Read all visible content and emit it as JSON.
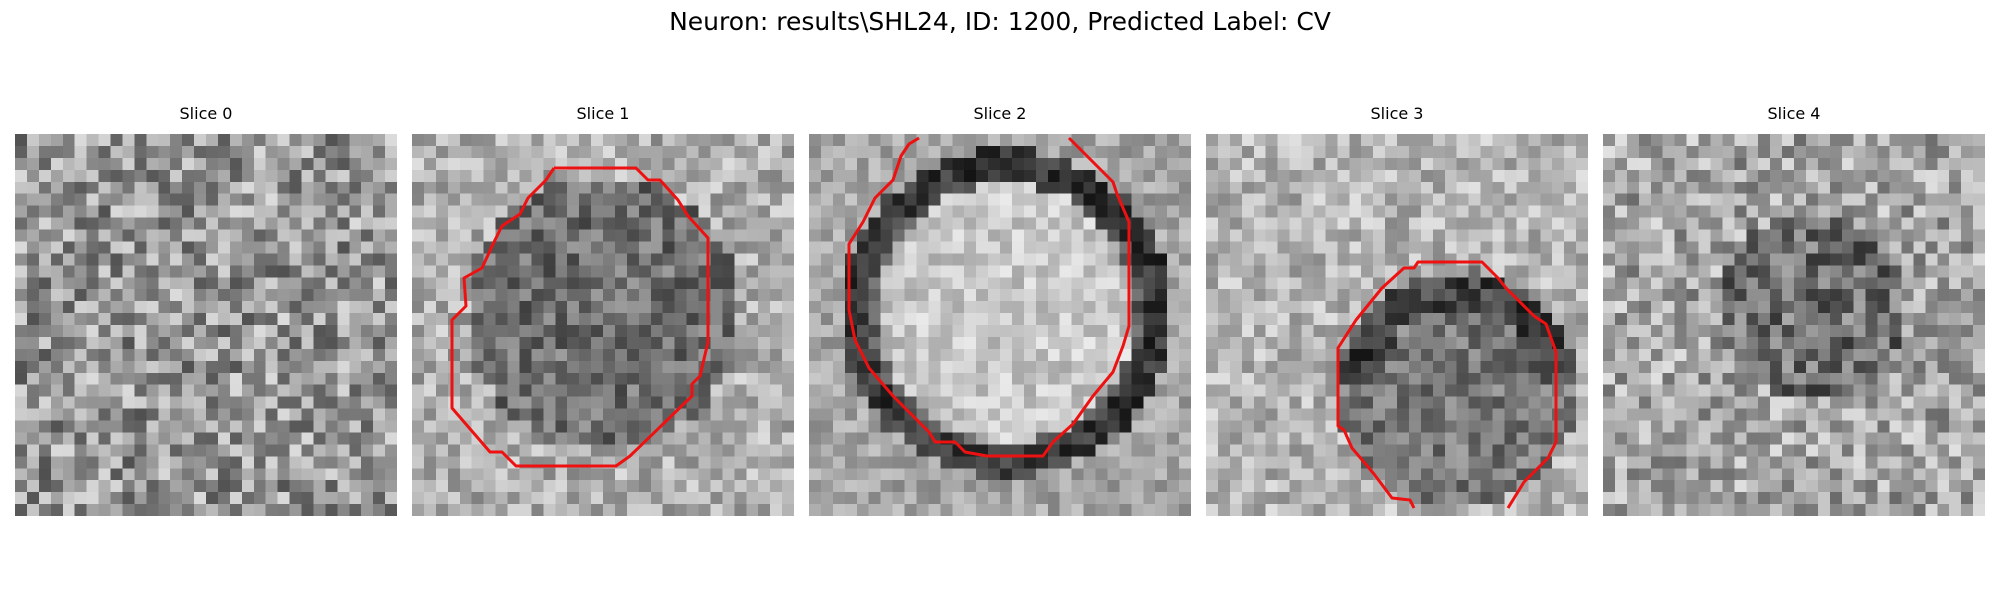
{
  "figure": {
    "title": "Neuron: results\\SHL24, ID: 1200, Predicted Label: CV"
  },
  "slices": [
    {
      "title": "Slice 0",
      "has_contour": false
    },
    {
      "title": "Slice 1",
      "has_contour": true
    },
    {
      "title": "Slice 2",
      "has_contour": true
    },
    {
      "title": "Slice 3",
      "has_contour": true
    },
    {
      "title": "Slice 4",
      "has_contour": false
    }
  ],
  "colors": {
    "contour": "#ee1111",
    "background": "#ffffff"
  }
}
